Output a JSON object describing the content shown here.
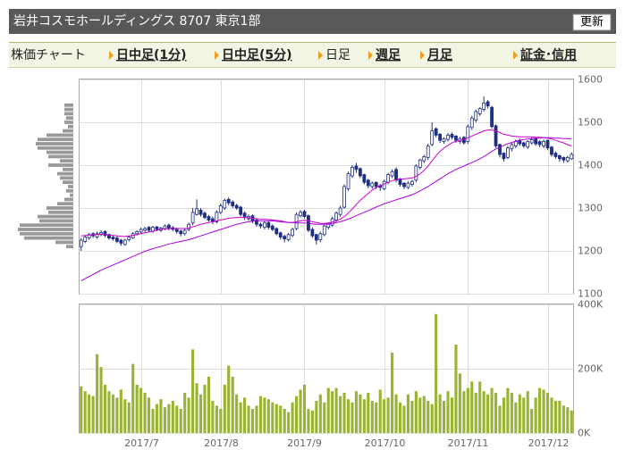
{
  "header": {
    "title": "岩井コスモホールディングス 8707 東京1部",
    "button": "更新"
  },
  "tabs": [
    "株価チャート",
    "日中足(1分)",
    "日中足(5分)",
    "日足",
    "週足",
    "月足",
    "証金･信用"
  ],
  "chart_data": [
    {
      "type": "candlestick",
      "ylim": [
        1100,
        1600
      ],
      "yticks": [
        1100,
        1200,
        1300,
        1400,
        1500,
        1600
      ],
      "grid": true,
      "up_color": "#ffffff",
      "down_color": "#1f2f80",
      "edge_color": "#1f2f80",
      "open": [
        1210,
        1222,
        1230,
        1240,
        1232,
        1238,
        1245,
        1238,
        1232,
        1230,
        1225,
        1215,
        1226,
        1230,
        1240,
        1244,
        1248,
        1255,
        1246,
        1256,
        1248,
        1252,
        1260,
        1254,
        1250,
        1246,
        1240,
        1250,
        1265,
        1285,
        1295,
        1288,
        1280,
        1275,
        1268,
        1290,
        1300,
        1320,
        1314,
        1306,
        1302,
        1288,
        1275,
        1282,
        1272,
        1262,
        1255,
        1266,
        1258,
        1252,
        1242,
        1234,
        1226,
        1236,
        1252,
        1282,
        1292,
        1282,
        1250,
        1238,
        1226,
        1238,
        1255,
        1260,
        1272,
        1285,
        1302,
        1345,
        1375,
        1398,
        1392,
        1378,
        1365,
        1350,
        1360,
        1352,
        1345,
        1360,
        1375,
        1390,
        1368,
        1358,
        1348,
        1355,
        1365,
        1395,
        1410,
        1418,
        1448,
        1485,
        1472,
        1455,
        1460,
        1472,
        1468,
        1455,
        1465,
        1455,
        1488,
        1505,
        1520,
        1530,
        1548,
        1535,
        1492,
        1448,
        1428,
        1418,
        1438,
        1445,
        1458,
        1452,
        1442,
        1452,
        1462,
        1455,
        1445,
        1458,
        1442,
        1428,
        1422,
        1418,
        1410,
        1415
      ],
      "high": [
        1230,
        1236,
        1242,
        1244,
        1245,
        1248,
        1248,
        1240,
        1236,
        1234,
        1228,
        1228,
        1235,
        1244,
        1248,
        1254,
        1256,
        1258,
        1258,
        1258,
        1256,
        1262,
        1264,
        1258,
        1254,
        1250,
        1252,
        1266,
        1300,
        1320,
        1300,
        1292,
        1284,
        1280,
        1295,
        1310,
        1322,
        1325,
        1318,
        1310,
        1305,
        1292,
        1285,
        1285,
        1275,
        1266,
        1270,
        1270,
        1262,
        1255,
        1245,
        1238,
        1242,
        1254,
        1290,
        1295,
        1296,
        1285,
        1255,
        1240,
        1245,
        1262,
        1266,
        1280,
        1292,
        1305,
        1355,
        1385,
        1400,
        1405,
        1395,
        1380,
        1368,
        1362,
        1362,
        1356,
        1366,
        1382,
        1390,
        1395,
        1370,
        1360,
        1362,
        1366,
        1402,
        1415,
        1424,
        1450,
        1500,
        1488,
        1475,
        1465,
        1475,
        1476,
        1470,
        1466,
        1468,
        1495,
        1515,
        1530,
        1535,
        1560,
        1552,
        1538,
        1495,
        1450,
        1430,
        1445,
        1452,
        1460,
        1462,
        1455,
        1458,
        1465,
        1465,
        1458,
        1460,
        1460,
        1445,
        1432,
        1425,
        1420,
        1422,
        1430
      ],
      "low": [
        1200,
        1218,
        1226,
        1230,
        1228,
        1234,
        1232,
        1226,
        1224,
        1218,
        1212,
        1212,
        1222,
        1228,
        1236,
        1240,
        1244,
        1244,
        1242,
        1246,
        1244,
        1248,
        1248,
        1246,
        1240,
        1234,
        1236,
        1246,
        1260,
        1282,
        1280,
        1274,
        1268,
        1262,
        1264,
        1286,
        1296,
        1306,
        1300,
        1296,
        1280,
        1272,
        1270,
        1264,
        1256,
        1252,
        1250,
        1250,
        1246,
        1236,
        1226,
        1220,
        1222,
        1232,
        1248,
        1278,
        1276,
        1244,
        1230,
        1215,
        1220,
        1234,
        1250,
        1256,
        1268,
        1280,
        1298,
        1340,
        1370,
        1382,
        1370,
        1355,
        1346,
        1345,
        1344,
        1340,
        1342,
        1355,
        1370,
        1360,
        1350,
        1344,
        1344,
        1350,
        1360,
        1390,
        1405,
        1412,
        1444,
        1465,
        1452,
        1450,
        1455,
        1460,
        1452,
        1450,
        1448,
        1450,
        1482,
        1500,
        1515,
        1525,
        1532,
        1485,
        1440,
        1418,
        1408,
        1414,
        1432,
        1440,
        1445,
        1440,
        1438,
        1448,
        1445,
        1442,
        1440,
        1436,
        1420,
        1415,
        1408,
        1405,
        1406,
        1412
      ],
      "close": [
        1225,
        1232,
        1238,
        1235,
        1240,
        1243,
        1236,
        1230,
        1228,
        1222,
        1218,
        1225,
        1232,
        1240,
        1245,
        1250,
        1252,
        1248,
        1255,
        1250,
        1253,
        1258,
        1252,
        1250,
        1245,
        1240,
        1248,
        1262,
        1290,
        1298,
        1285,
        1278,
        1272,
        1268,
        1290,
        1305,
        1318,
        1312,
        1305,
        1300,
        1285,
        1278,
        1280,
        1270,
        1262,
        1258,
        1265,
        1255,
        1250,
        1240,
        1232,
        1228,
        1238,
        1250,
        1285,
        1290,
        1280,
        1248,
        1235,
        1225,
        1240,
        1258,
        1262,
        1275,
        1288,
        1300,
        1350,
        1380,
        1395,
        1390,
        1375,
        1360,
        1352,
        1358,
        1350,
        1348,
        1362,
        1378,
        1385,
        1365,
        1355,
        1350,
        1358,
        1362,
        1398,
        1412,
        1420,
        1445,
        1480,
        1470,
        1458,
        1462,
        1470,
        1465,
        1458,
        1462,
        1452,
        1490,
        1510,
        1525,
        1532,
        1545,
        1538,
        1490,
        1445,
        1425,
        1415,
        1440,
        1448,
        1455,
        1450,
        1445,
        1455,
        1460,
        1450,
        1448,
        1455,
        1440,
        1425,
        1420,
        1415,
        1412,
        1418,
        1425
      ],
      "moving_averages": [
        {
          "color": "#cc00cc",
          "values": [
            1235,
            1236,
            1237,
            1238,
            1238,
            1239,
            1238,
            1237,
            1236,
            1235,
            1234,
            1234,
            1235,
            1236,
            1238,
            1240,
            1242,
            1244,
            1246,
            1248,
            1250,
            1251,
            1252,
            1252,
            1252,
            1252,
            1252,
            1253,
            1256,
            1259,
            1262,
            1264,
            1266,
            1268,
            1270,
            1272,
            1274,
            1276,
            1277,
            1278,
            1278,
            1278,
            1277,
            1276,
            1275,
            1274,
            1274,
            1273,
            1272,
            1271,
            1270,
            1268,
            1266,
            1266,
            1268,
            1270,
            1271,
            1270,
            1268,
            1266,
            1264,
            1264,
            1265,
            1267,
            1270,
            1274,
            1280,
            1288,
            1298,
            1308,
            1318,
            1326,
            1334,
            1342,
            1348,
            1352,
            1356,
            1360,
            1364,
            1366,
            1368,
            1368,
            1369,
            1370,
            1374,
            1380,
            1388,
            1398,
            1410,
            1422,
            1432,
            1440,
            1446,
            1452,
            1456,
            1458,
            1460,
            1464,
            1468,
            1472,
            1476,
            1480,
            1482,
            1482,
            1480,
            1476,
            1472,
            1470,
            1468,
            1467,
            1466,
            1466,
            1466,
            1466,
            1465,
            1465,
            1464,
            1463,
            1461,
            1458,
            1455,
            1452,
            1448,
            1445
          ]
        },
        {
          "color": "#aa00dd",
          "values": [
            1130,
            1135,
            1140,
            1145,
            1150,
            1155,
            1159,
            1163,
            1167,
            1171,
            1175,
            1179,
            1183,
            1187,
            1191,
            1195,
            1199,
            1202,
            1205,
            1208,
            1210,
            1213,
            1216,
            1218,
            1220,
            1222,
            1224,
            1226,
            1229,
            1232,
            1235,
            1238,
            1241,
            1244,
            1247,
            1250,
            1253,
            1256,
            1259,
            1262,
            1264,
            1266,
            1268,
            1269,
            1270,
            1270,
            1270,
            1270,
            1270,
            1269,
            1268,
            1267,
            1266,
            1266,
            1265,
            1265,
            1265,
            1264,
            1263,
            1262,
            1262,
            1262,
            1263,
            1264,
            1266,
            1268,
            1271,
            1274,
            1278,
            1282,
            1286,
            1290,
            1294,
            1298,
            1302,
            1306,
            1310,
            1313,
            1316,
            1319,
            1322,
            1325,
            1328,
            1331,
            1335,
            1340,
            1345,
            1350,
            1356,
            1362,
            1368,
            1374,
            1380,
            1385,
            1390,
            1394,
            1398,
            1402,
            1406,
            1410,
            1415,
            1420,
            1426,
            1432,
            1438,
            1442,
            1446,
            1450,
            1453,
            1456,
            1458,
            1460,
            1461,
            1462,
            1463,
            1463,
            1464,
            1464,
            1464,
            1463,
            1463,
            1462,
            1462,
            1461
          ]
        }
      ]
    },
    {
      "type": "bar",
      "color": "#99b433",
      "ylim": [
        0,
        400000
      ],
      "yticks": [
        {
          "value": 0,
          "label": "0K"
        },
        {
          "value": 200000,
          "label": "200K"
        },
        {
          "value": 400000,
          "label": "400K"
        }
      ],
      "grid": true,
      "categories": [
        null,
        null,
        null,
        null,
        null,
        null,
        null,
        null,
        null,
        null,
        null,
        null,
        null,
        null,
        null,
        "2017/7",
        null,
        null,
        null,
        null,
        null,
        null,
        null,
        null,
        null,
        null,
        null,
        null,
        null,
        null,
        null,
        null,
        null,
        null,
        null,
        "2017/8",
        null,
        null,
        null,
        null,
        null,
        null,
        null,
        null,
        null,
        null,
        null,
        null,
        null,
        null,
        null,
        null,
        null,
        null,
        null,
        null,
        "2017/9",
        null,
        null,
        null,
        null,
        null,
        null,
        null,
        null,
        null,
        null,
        null,
        null,
        null,
        null,
        null,
        null,
        null,
        null,
        null,
        "2017/10",
        null,
        null,
        null,
        null,
        null,
        null,
        null,
        null,
        null,
        null,
        null,
        null,
        null,
        null,
        null,
        null,
        null,
        null,
        null,
        null,
        "2017/11",
        null,
        null,
        null,
        null,
        null,
        null,
        null,
        null,
        null,
        null,
        null,
        null,
        null,
        null,
        null,
        null,
        null,
        null,
        null,
        "2017/12",
        null,
        null,
        null,
        null,
        null,
        null
      ],
      "values": [
        145000,
        130000,
        120000,
        115000,
        245000,
        205000,
        150000,
        130000,
        120000,
        110000,
        135000,
        105000,
        95000,
        215000,
        150000,
        140000,
        125000,
        110000,
        75000,
        90000,
        105000,
        80000,
        90000,
        100000,
        85000,
        75000,
        125000,
        110000,
        260000,
        155000,
        120000,
        150000,
        175000,
        100000,
        85000,
        75000,
        150000,
        210000,
        175000,
        120000,
        95000,
        110000,
        85000,
        75000,
        85000,
        115000,
        110000,
        105000,
        95000,
        90000,
        85000,
        75000,
        65000,
        95000,
        115000,
        135000,
        150000,
        75000,
        70000,
        100000,
        120000,
        95000,
        140000,
        130000,
        140000,
        115000,
        125000,
        105000,
        95000,
        130000,
        120000,
        105000,
        125000,
        100000,
        95000,
        135000,
        105000,
        110000,
        250000,
        120000,
        95000,
        85000,
        120000,
        100000,
        130000,
        110000,
        115000,
        100000,
        90000,
        370000,
        120000,
        100000,
        130000,
        110000,
        275000,
        185000,
        130000,
        140000,
        160000,
        125000,
        160000,
        130000,
        120000,
        140000,
        125000,
        85000,
        110000,
        140000,
        125000,
        95000,
        120000,
        110000,
        130000,
        75000,
        110000,
        140000,
        135000,
        125000,
        110000,
        100000,
        100000,
        85000,
        80000,
        70000
      ]
    },
    {
      "type": "volume_profile",
      "color": "#999999",
      "prices": [
        1540,
        1530,
        1520,
        1510,
        1500,
        1490,
        1480,
        1470,
        1460,
        1450,
        1440,
        1430,
        1420,
        1410,
        1400,
        1390,
        1380,
        1370,
        1360,
        1350,
        1340,
        1330,
        1320,
        1310,
        1300,
        1290,
        1280,
        1270,
        1260,
        1250,
        1240,
        1230,
        1220,
        1210
      ],
      "values": [
        200000,
        200000,
        200000,
        160000,
        200000,
        120000,
        240000,
        600000,
        800000,
        840000,
        800000,
        600000,
        560000,
        300000,
        560000,
        240000,
        360000,
        300000,
        240000,
        120000,
        160000,
        80000,
        200000,
        360000,
        600000,
        560000,
        800000,
        760000,
        1200000,
        1240000,
        1200000,
        1100000,
        400000,
        160000
      ]
    }
  ]
}
